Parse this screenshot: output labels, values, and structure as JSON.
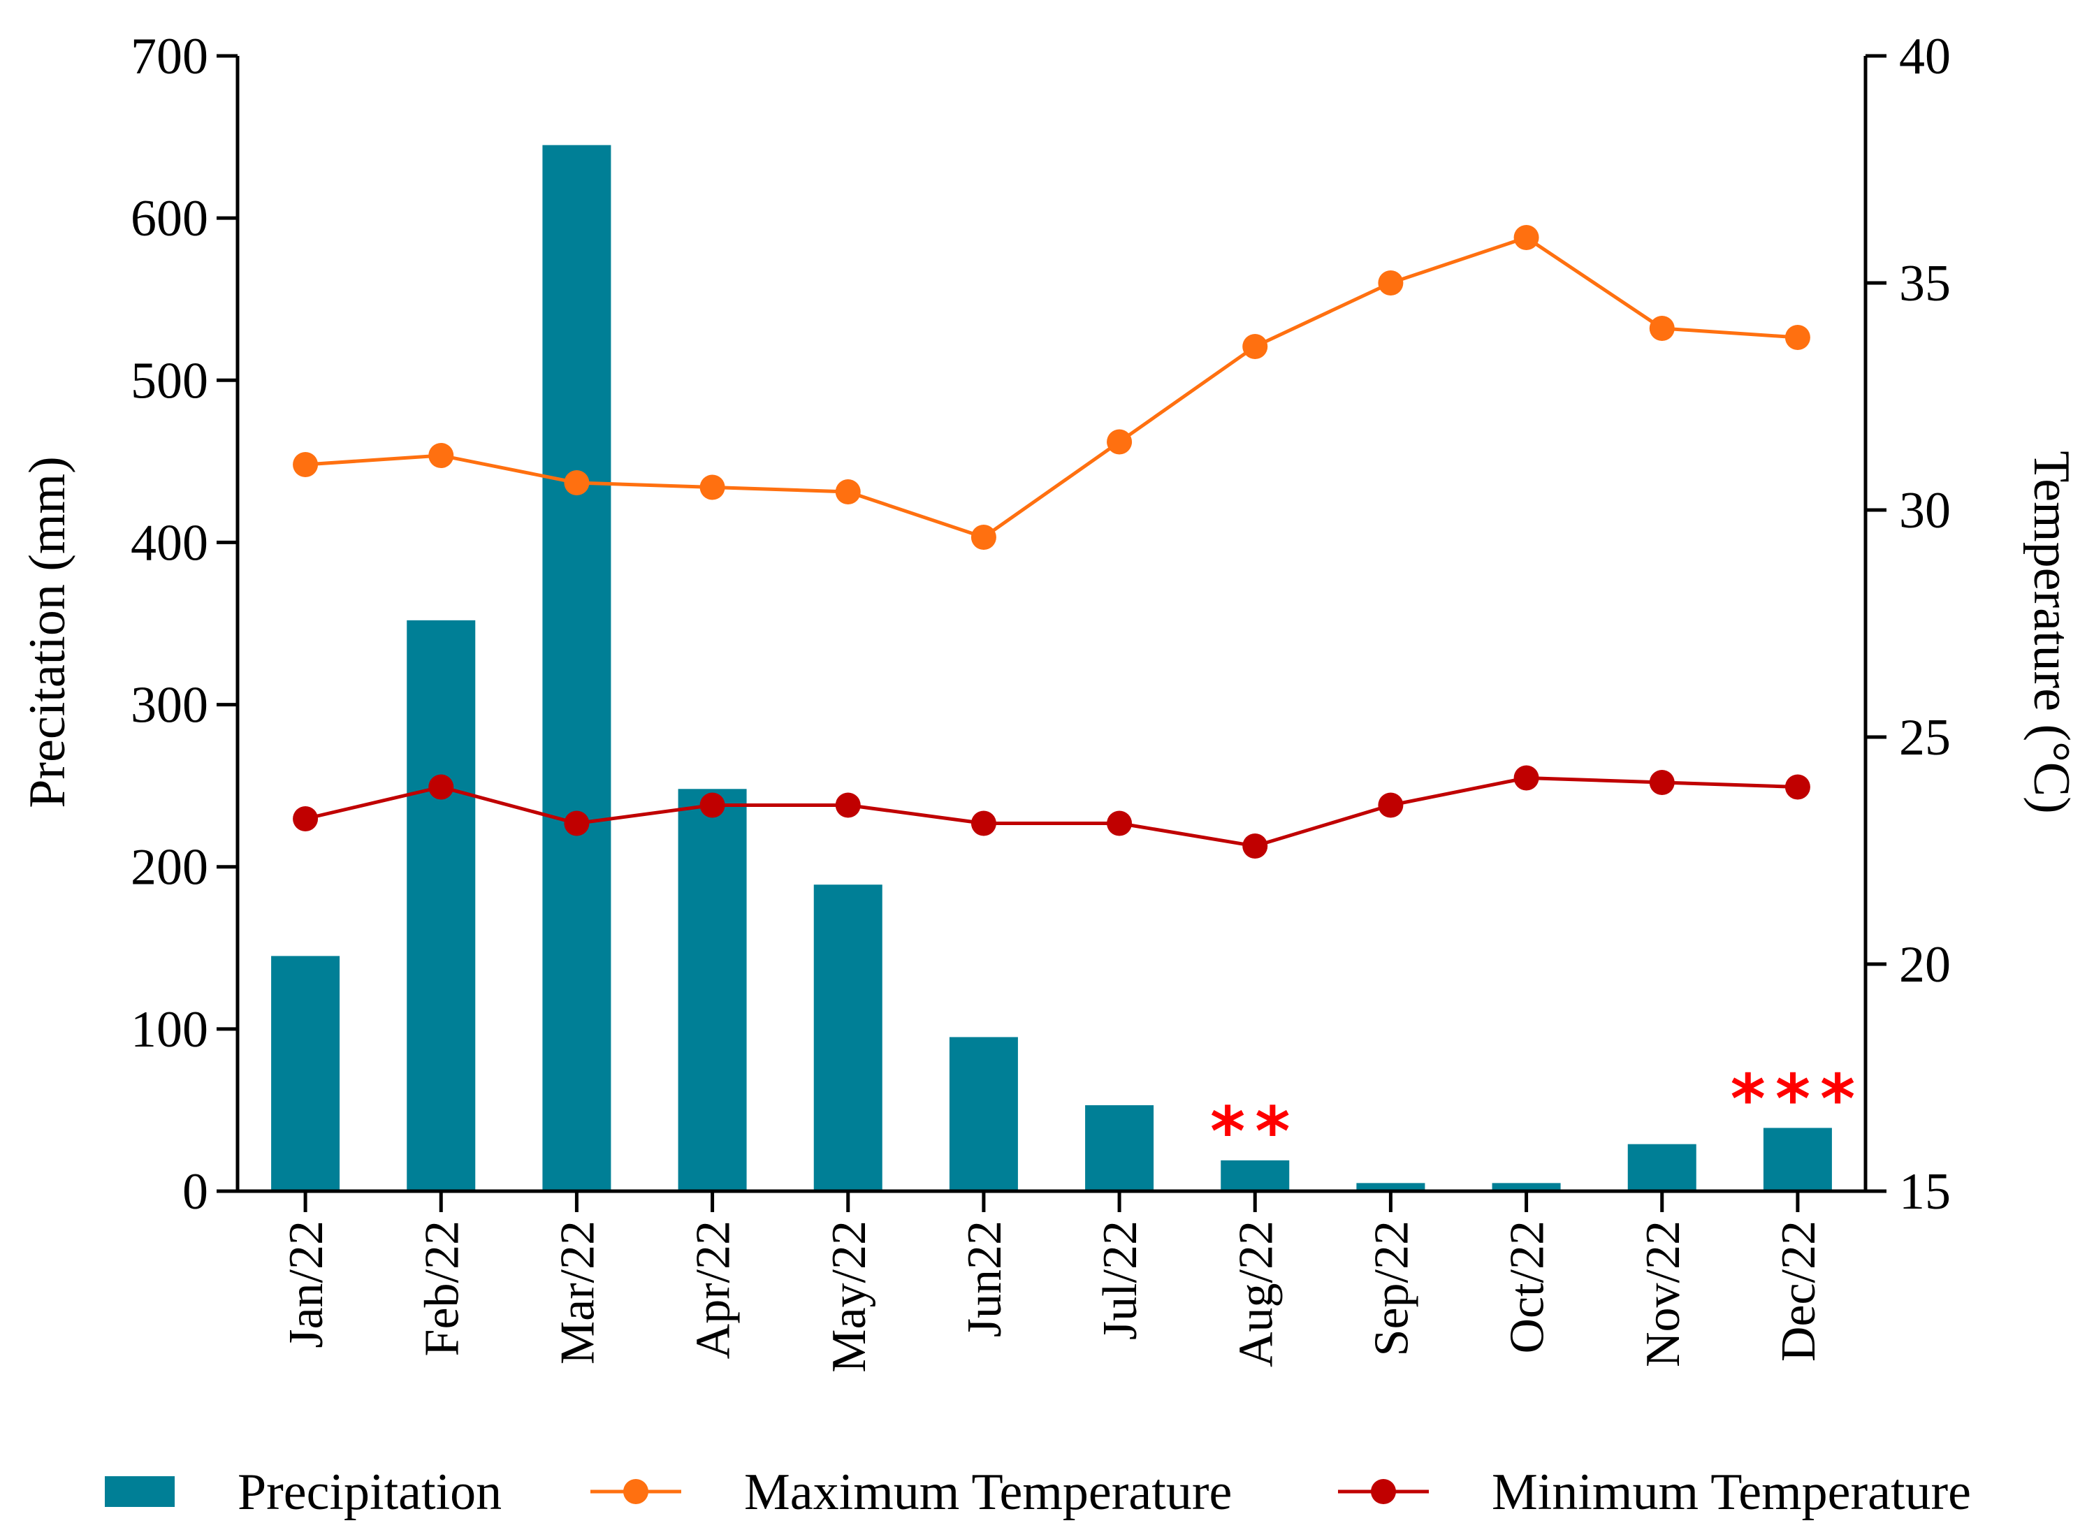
{
  "chart_data": {
    "type": "bar",
    "title": "",
    "categories": [
      "Jan/22",
      "Feb/22",
      "Mar/22",
      "Apr/22",
      "May/22",
      "Jun22",
      "Jul/22",
      "Aug/22",
      "Sep/22",
      "Oct/22",
      "Nov/22",
      "Dec/22"
    ],
    "series": [
      {
        "name": "Precipitation",
        "kind": "bar",
        "axis": "left",
        "color": "#007f96",
        "values": [
          145,
          352,
          645,
          248,
          189,
          95,
          53,
          19,
          5,
          5,
          29,
          39
        ]
      },
      {
        "name": "Maximum Temperature",
        "kind": "line",
        "axis": "right",
        "color": "#ff7010",
        "values": [
          31.0,
          31.2,
          30.6,
          30.5,
          30.4,
          29.4,
          31.5,
          33.6,
          35.0,
          36.0,
          34.0,
          33.8
        ]
      },
      {
        "name": "Minimum Temperature",
        "kind": "line",
        "axis": "right",
        "color": "#c00000",
        "values": [
          23.2,
          23.9,
          23.1,
          23.5,
          23.5,
          23.1,
          23.1,
          22.6,
          23.5,
          24.1,
          24.0,
          23.9
        ]
      }
    ],
    "left_axis": {
      "label": "Precitation (mm)",
      "min": 0,
      "max": 700,
      "ticks": [
        0,
        100,
        200,
        300,
        400,
        500,
        600,
        700
      ]
    },
    "right_axis": {
      "label": "Temperature (°C)",
      "min": 15,
      "max": 40,
      "ticks": [
        15,
        20,
        25,
        30,
        35,
        40
      ]
    },
    "annotations": [
      {
        "category": "Aug/22",
        "text": "**"
      },
      {
        "category": "Dec/22",
        "text": "***"
      }
    ],
    "legend": {
      "position": "bottom",
      "entries": [
        "Precipitation",
        "Maximum Temperature",
        "Minimum Temperature"
      ]
    },
    "grid": false
  }
}
